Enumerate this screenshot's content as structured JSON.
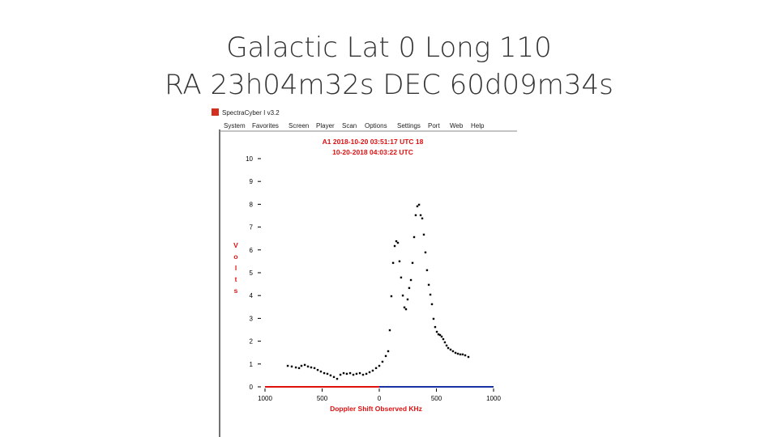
{
  "slide": {
    "title_lines": [
      "Galactic Lat 0 Long 110",
      "RA 23h04m32s DEC 60d09m34s"
    ]
  },
  "window": {
    "title": "SpectraCyber I v3.2",
    "menu": [
      "System",
      "Favorites",
      "Screen",
      "Player",
      "Scan",
      "Options",
      "Settings",
      "Port",
      "Web",
      "Help"
    ]
  },
  "chart_data": {
    "type": "scatter",
    "annotations": [
      "A1 2018-10-20 03:51:17 UTC 18",
      "10-20-2018  04:03:22 UTC"
    ],
    "x_label": "Doppler Shift  Observed KHz",
    "y_label": "Volts",
    "xlim": [
      -1000,
      1000
    ],
    "ylim": [
      0,
      10
    ],
    "xticks": [
      {
        "value": -1000,
        "label": "1000"
      },
      {
        "value": -500,
        "label": "500"
      },
      0,
      500,
      1000
    ],
    "yticks": [
      0,
      1,
      2,
      3,
      4,
      5,
      6,
      7,
      8,
      9,
      10
    ],
    "color": "#000000",
    "x": [
      -801,
      -766,
      -730,
      -702,
      -681,
      -652,
      -624,
      -596,
      -567,
      -539,
      -511,
      -482,
      -454,
      -426,
      -397,
      -369,
      -340,
      -312,
      -284,
      -255,
      -227,
      -199,
      -170,
      -142,
      -113,
      -85,
      -57,
      -28,
      0,
      28,
      57,
      78,
      92,
      106,
      121,
      135,
      149,
      163,
      177,
      191,
      206,
      220,
      234,
      248,
      262,
      277,
      291,
      305,
      319,
      333,
      348,
      362,
      376,
      390,
      404,
      418,
      433,
      447,
      461,
      475,
      489,
      504,
      518,
      532,
      546,
      560,
      574,
      589,
      603,
      624,
      645,
      667,
      688,
      709,
      730,
      752,
      780
    ],
    "y": [
      0.92,
      0.89,
      0.85,
      0.82,
      0.92,
      0.96,
      0.89,
      0.85,
      0.82,
      0.74,
      0.67,
      0.6,
      0.57,
      0.5,
      0.43,
      0.35,
      0.53,
      0.6,
      0.57,
      0.6,
      0.53,
      0.57,
      0.6,
      0.53,
      0.57,
      0.64,
      0.71,
      0.82,
      0.92,
      1.1,
      1.35,
      1.56,
      2.48,
      3.97,
      5.43,
      6.17,
      6.38,
      6.31,
      5.5,
      4.79,
      4.0,
      3.48,
      3.4,
      3.83,
      4.33,
      4.68,
      5.43,
      6.56,
      7.52,
      7.91,
      7.98,
      7.52,
      7.38,
      6.67,
      5.89,
      5.11,
      4.47,
      4.04,
      3.62,
      2.98,
      2.62,
      2.41,
      2.3,
      2.27,
      2.2,
      2.09,
      1.95,
      1.81,
      1.7,
      1.63,
      1.56,
      1.49,
      1.45,
      1.42,
      1.42,
      1.38,
      1.31
    ]
  }
}
